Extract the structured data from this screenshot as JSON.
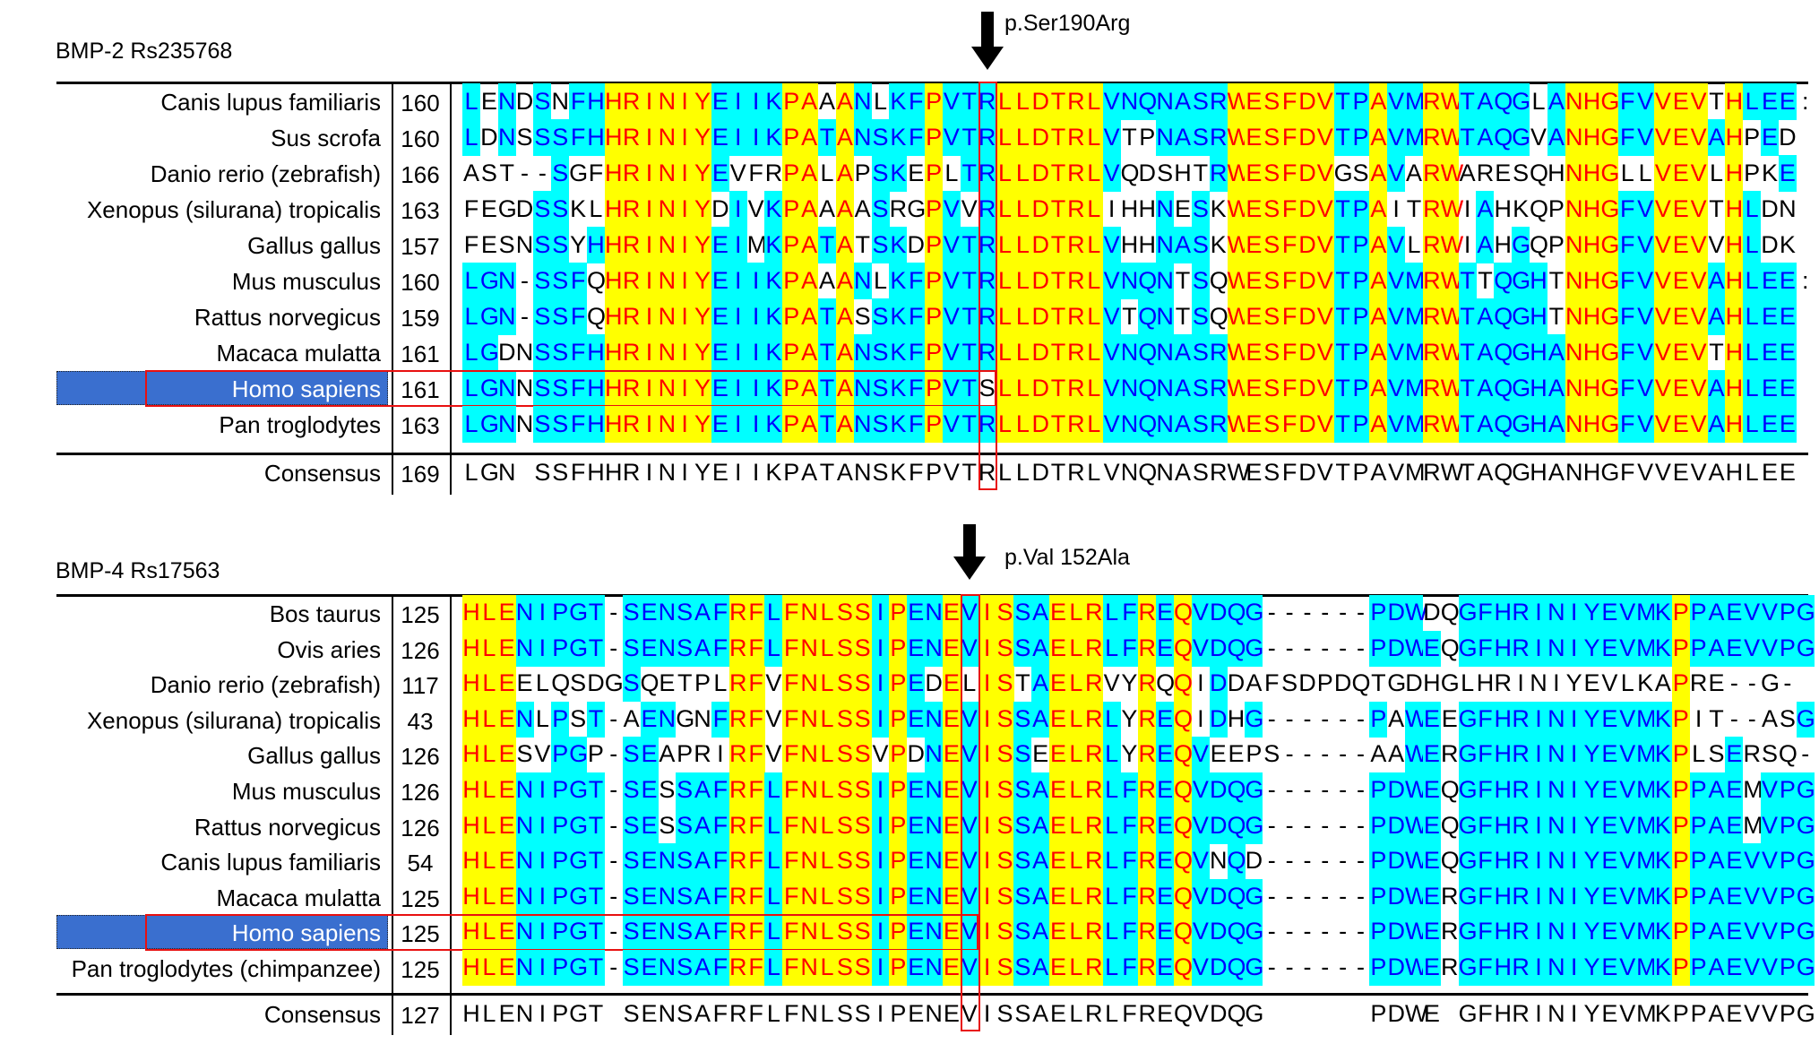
{
  "colors": {
    "identical_bg": "#ffff00",
    "identical_text": "#ff0000",
    "conserved_bg": "#00ffff",
    "conserved_text": "#0000ff",
    "variant_text": "#000000",
    "highlight_bg": "#3a6fcf",
    "marker_box": "#e81010"
  },
  "blocks": [
    {
      "title": "BMP-2 Rs235768",
      "mutation_label": "p.Ser190Arg",
      "mutation_column": 29,
      "highlight_row": 8,
      "rows": [
        {
          "name": "Canis lupus familiaris",
          "start": "160",
          "seq": "LENDSNFHHRINIYEIIKPAAANLKFPVTRLLDTRLVNQNASRWESFDVTPAVMRWTAQGLANHGFVVEVTHLEE:"
        },
        {
          "name": "Sus scrofa",
          "start": "160",
          "seq": "LDNSSSFHHRINIYEIIKPATANSKFPVTRLLDTRLVTPNASRWESFDVTPAVMRWTAQGVANHGFVVEVAHPED"
        },
        {
          "name": "Danio rerio (zebrafish)",
          "start": "166",
          "seq": "AST--SGFHRINIYEVFRPALAPSKEPLTRLLDTRLVQDSHTRWESFDVGSAVARWARESQHNHGLLVEVLHPKE"
        },
        {
          "name": "Xenopus (silurana) tropicalis",
          "start": "163",
          "seq": "FEGDSSKLHRINIYDIVKPAAAASRGPVVRLLDTRLIHHNESKWESFDVTPAITRWIAHKQPNHGFVVEVTHLDN"
        },
        {
          "name": "Gallus gallus",
          "start": "157",
          "seq": "FESNSSYHHRINIYEIMKPATATSKDPVTRLLDTRLVHHNASKWESFDVTPAVLRWIAHGQPNHGFVVEVVHLDK"
        },
        {
          "name": "Mus musculus",
          "start": "160",
          "seq": "LGN-SSFQHRINIYEIIKPAAANLKFPVTRLLDTRLVNQNTSQWESFDVTPAVMRWTTQGHTNHGFVVEVAHLEE:"
        },
        {
          "name": "Rattus norvegicus",
          "start": "159",
          "seq": "LGN-SSFQHRINIYEIIKPATASSKFPVTRLLDTRLVTQNTSQWESFDVTPAVMRWTAQGHTNHGFVVEVAHLEE"
        },
        {
          "name": "Macaca mulatta",
          "start": "161",
          "seq": "LGDNSSFHHRINIYEIIKPATANSKFPVTRLLDTRLVNQNASRWESFDVTPAVMRWTAQGHANHGFVVEVTHLEE"
        },
        {
          "name": "Homo sapiens",
          "start": "161",
          "seq": "LGNNSSFHHRINIYEIIKPATANSKFPVTSLLDTRLVNQNASRWESFDVTPAVMRWTAQGHANHGFVVEVAHLEE"
        },
        {
          "name": "Pan troglodytes",
          "start": "163",
          "seq": "LGNNSSFHHRINIYEIIKPATANSKFPVTRLLDTRLVNQNASRWESFDVTPAVMRWTAQGHANHGFVVEVAHLEE"
        }
      ],
      "consensus": {
        "name": "Consensus",
        "start": "169",
        "seq": "LGN SSFHHRINIYEIIKPATANSKFPVTRLLDTRLVNQNASRWESFDVTPAVMRWTAQGHANHGFVVEVAHLEE"
      }
    },
    {
      "title": "BMP-4 Rs17563",
      "mutation_label": "p.Val 152Ala",
      "mutation_column": 28,
      "highlight_row": 9,
      "rows": [
        {
          "name": "Bos taurus",
          "start": "125",
          "seq": "HLENIPGT-SENSAFRFLFNLSSIPENEVISSAELRLFREQVDQG------PDWDQGFHRINIYEVMKPPAEVVPG"
        },
        {
          "name": "Ovis aries",
          "start": "126",
          "seq": "HLENIPGT-SENSAFRFLFNLSSIPENEVISSAELRLFREQVDQG------PDWEQGFHRINIYEVMKPPAEVVPG"
        },
        {
          "name": "Danio rerio (zebrafish)",
          "start": "117",
          "seq": "HLEELQSDGSQETPLRFVFNLSSIPEDELISTAELRVYRQQIDDAFSDPDQTGDHGLHRINIYEVLKAPRE--G-"
        },
        {
          "name": "Xenopus (silurana) tropicalis",
          "start": "43",
          "seq": "HLENLPST-AENGNFRFVFNLSSIPENEVISSAELRLYREQIDHG------PAWEEGFHRINIYEVMKPIT--ASG"
        },
        {
          "name": "Gallus gallus",
          "start": "126",
          "seq": "HLESVPGP-SEAPRIRFVFNLSSVPDNEVISSEELRLYREQVEEPS-----AAWERGFHRINIYEVMKPLSERSQ-"
        },
        {
          "name": "Mus musculus",
          "start": "126",
          "seq": "HLENIPGT-SESSAFRFLFNLSSIPENEVISSAELRLFREQVDQG------PDWEQGFHRINIYEVMKPPAEMVPG"
        },
        {
          "name": "Rattus norvegicus",
          "start": "126",
          "seq": "HLENIPGT-SESSAFRFLFNLSSIPENEVISSAELRLFREQVDQG------PDWEQGFHRINIYEVMKPPAEMVPG"
        },
        {
          "name": "Canis lupus familiaris",
          "start": "54",
          "seq": "HLENIPGT-SENSAFRFLFNLSSIPENEVISSAELRLFREQVNQD------PDWEQGFHRINIYEVMKPPAEVVPG"
        },
        {
          "name": "Macaca mulatta",
          "start": "125",
          "seq": "HLENIPGT-SENSAFRFLFNLSSIPENEVISSAELRLFREQVDQG------PDWERGFHRINIYEVMKPPAEVVPG"
        },
        {
          "name": "Homo sapiens",
          "start": "125",
          "seq": "HLENIPGT-SENSAFRFLFNLSSIPENEVISSAELRLFREQVDQG------PDWERGFHRINIYEVMKPPAEVVPG"
        },
        {
          "name": "Pan troglodytes (chimpanzee)",
          "start": "125",
          "seq": "HLENIPGT-SENSAFRFLFNLSSIPENEVISSAELRLFREQVDQG------PDWERGFHRINIYEVMKPPAEVVPG"
        }
      ],
      "consensus": {
        "name": "Consensus",
        "start": "127",
        "seq": "HLENIPGT SENSAFRFLFNLSSIPENEVISSAELRLFREQVDQG      PDWE GFHRINIYEVMKPPAEVVPG"
      }
    }
  ]
}
